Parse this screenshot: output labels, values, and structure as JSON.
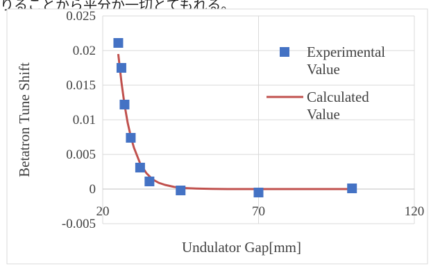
{
  "header_fragment": "りることから平分か一切とてもれる。",
  "chart_data": {
    "type": "scatter",
    "title": "",
    "xlabel": "Undulator Gap[mm]",
    "ylabel": "Betatron Tune Shift",
    "xlim": [
      20,
      120
    ],
    "ylim": [
      -0.005,
      0.025
    ],
    "x_ticks": [
      "20",
      "70",
      "120"
    ],
    "y_ticks": [
      "-0.005",
      "0",
      "0.005",
      "0.01",
      "0.015",
      "0.02",
      "0.025"
    ],
    "grid": true,
    "legend_position": "right",
    "series": [
      {
        "name": "Experimental Value",
        "kind": "markers",
        "marker": "square",
        "color": "#4472C4",
        "x": [
          25,
          26,
          27,
          29,
          32,
          35,
          45,
          70,
          100
        ],
        "y": [
          0.0211,
          0.0175,
          0.0122,
          0.0074,
          0.0031,
          0.0011,
          -0.0002,
          -0.0005,
          0.0001
        ]
      },
      {
        "name": "Calculated Value",
        "kind": "line",
        "color": "#C0504D",
        "x": [
          25,
          26,
          27,
          28,
          29,
          30,
          32,
          34,
          36,
          38,
          40,
          43,
          46,
          50,
          55,
          60,
          70,
          80,
          90,
          100
        ],
        "y": [
          0.0195,
          0.0155,
          0.0122,
          0.0096,
          0.0076,
          0.006,
          0.0037,
          0.0023,
          0.0014,
          0.0009,
          0.0006,
          0.0003,
          0.00015,
          7e-05,
          2e-05,
          0.0,
          0.0,
          0.0,
          0.0,
          0.0
        ]
      }
    ]
  }
}
